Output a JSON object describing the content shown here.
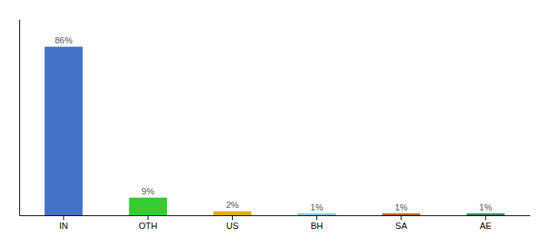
{
  "chart_data": {
    "type": "bar",
    "categories": [
      "IN",
      "OTH",
      "US",
      "BH",
      "SA",
      "AE"
    ],
    "values": [
      86,
      9,
      2,
      1,
      1,
      1
    ],
    "value_labels": [
      "86%",
      "9%",
      "2%",
      "1%",
      "1%",
      "1%"
    ],
    "colors": [
      "#4472c4",
      "#33cc33",
      "#e6a817",
      "#7ec8e3",
      "#b5651d",
      "#2d8c4e"
    ],
    "ylim": [
      0,
      100
    ],
    "data_labels": true,
    "tick_labels": "x"
  }
}
